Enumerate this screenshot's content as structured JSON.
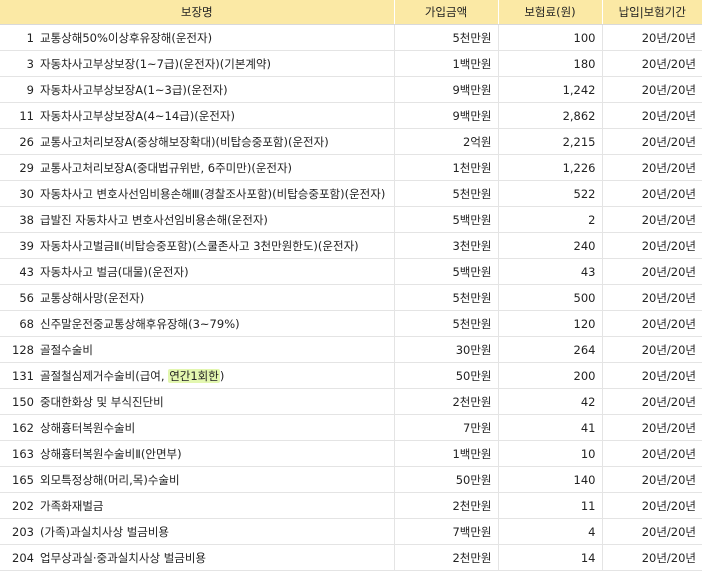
{
  "table": {
    "headers": [
      "보장명",
      "가입금액",
      "보험료(원)",
      "납입|보험기간"
    ],
    "rows": [
      {
        "no": "1",
        "name": "교통상해50%이상후유장해(운전자)",
        "amount": "5천만원",
        "premium": "100",
        "period": "20년/20년"
      },
      {
        "no": "3",
        "name": "자동차사고부상보장(1~7급)(운전자)(기본계약)",
        "amount": "1백만원",
        "premium": "180",
        "period": "20년/20년"
      },
      {
        "no": "9",
        "name": "자동차사고부상보장A(1~3급)(운전자)",
        "amount": "9백만원",
        "premium": "1,242",
        "period": "20년/20년"
      },
      {
        "no": "11",
        "name": "자동차사고부상보장A(4~14급)(운전자)",
        "amount": "9백만원",
        "premium": "2,862",
        "period": "20년/20년"
      },
      {
        "no": "26",
        "name": "교통사고처리보장A(중상해보장확대)(비탑승중포함)(운전자)",
        "amount": "2억원",
        "premium": "2,215",
        "period": "20년/20년"
      },
      {
        "no": "29",
        "name": "교통사고처리보장A(중대법규위반, 6주미만)(운전자)",
        "amount": "1천만원",
        "premium": "1,226",
        "period": "20년/20년"
      },
      {
        "no": "30",
        "name": "자동차사고 변호사선임비용손해Ⅲ(경찰조사포함)(비탑승중포함)(운전자)",
        "amount": "5천만원",
        "premium": "522",
        "period": "20년/20년"
      },
      {
        "no": "38",
        "name": "급발진 자동차사고 변호사선임비용손해(운전자)",
        "amount": "5백만원",
        "premium": "2",
        "period": "20년/20년"
      },
      {
        "no": "39",
        "name": "자동차사고벌금Ⅱ(비탑승중포함)(스쿨존사고 3천만원한도)(운전자)",
        "amount": "3천만원",
        "premium": "240",
        "period": "20년/20년"
      },
      {
        "no": "43",
        "name": "자동차사고 벌금(대물)(운전자)",
        "amount": "5백만원",
        "premium": "43",
        "period": "20년/20년"
      },
      {
        "no": "56",
        "name": "교통상해사망(운전자)",
        "amount": "5천만원",
        "premium": "500",
        "period": "20년/20년"
      },
      {
        "no": "68",
        "name": "신주말운전중교통상해후유장해(3~79%)",
        "amount": "5천만원",
        "premium": "120",
        "period": "20년/20년"
      },
      {
        "no": "128",
        "name": "골절수술비",
        "amount": "30만원",
        "premium": "264",
        "period": "20년/20년"
      },
      {
        "no": "131",
        "name": "골절철심제거수술비(급여, ",
        "name_highlight": "연간1회한",
        "name_suffix": ")",
        "amount": "50만원",
        "premium": "200",
        "period": "20년/20년"
      },
      {
        "no": "150",
        "name": "중대한화상 및 부식진단비",
        "amount": "2천만원",
        "premium": "42",
        "period": "20년/20년"
      },
      {
        "no": "162",
        "name": "상해흉터복원수술비",
        "amount": "7만원",
        "premium": "41",
        "period": "20년/20년"
      },
      {
        "no": "163",
        "name": "상해흉터복원수술비Ⅱ(안면부)",
        "amount": "1백만원",
        "premium": "10",
        "period": "20년/20년"
      },
      {
        "no": "165",
        "name": "외모특정상해(머리,목)수술비",
        "amount": "50만원",
        "premium": "140",
        "period": "20년/20년"
      },
      {
        "no": "202",
        "name": "가족화재벌금",
        "amount": "2천만원",
        "premium": "11",
        "period": "20년/20년"
      },
      {
        "no": "203",
        "name": "(가족)과실치사상 벌금비용",
        "amount": "7백만원",
        "premium": "4",
        "period": "20년/20년"
      },
      {
        "no": "204",
        "name": "업무상과실·중과실치사상 벌금비용",
        "amount": "2천만원",
        "premium": "14",
        "period": "20년/20년"
      }
    ]
  }
}
